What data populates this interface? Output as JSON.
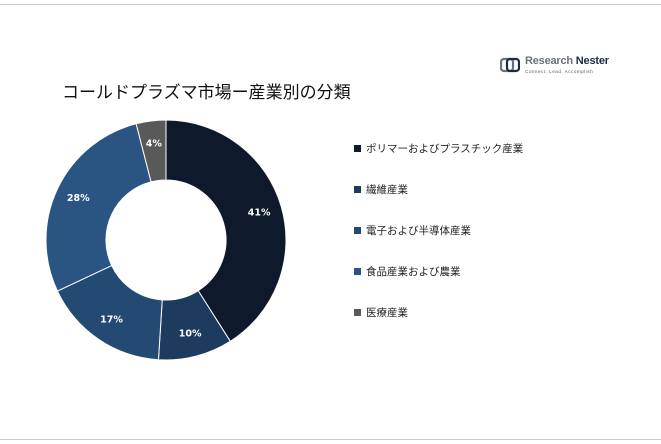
{
  "logo": {
    "name_part1": "Research",
    "name_part2": "Nester",
    "tagline": "Connect. Lead. Accomplish"
  },
  "chart_data": {
    "type": "pie",
    "donut": true,
    "title": "コールドプラズマ市場ー産業別の分類",
    "legend_position": "right",
    "categories": [
      "ポリマーおよびプラスチック産業",
      "繊維産業",
      "電子および半導体産業",
      "食品産業および農業",
      "医療産業"
    ],
    "values": [
      41,
      10,
      17,
      28,
      4
    ],
    "value_suffix": "%",
    "colors": [
      "#0e1a2b",
      "#1c3b5e",
      "#234a72",
      "#2a5583",
      "#595959"
    ]
  }
}
